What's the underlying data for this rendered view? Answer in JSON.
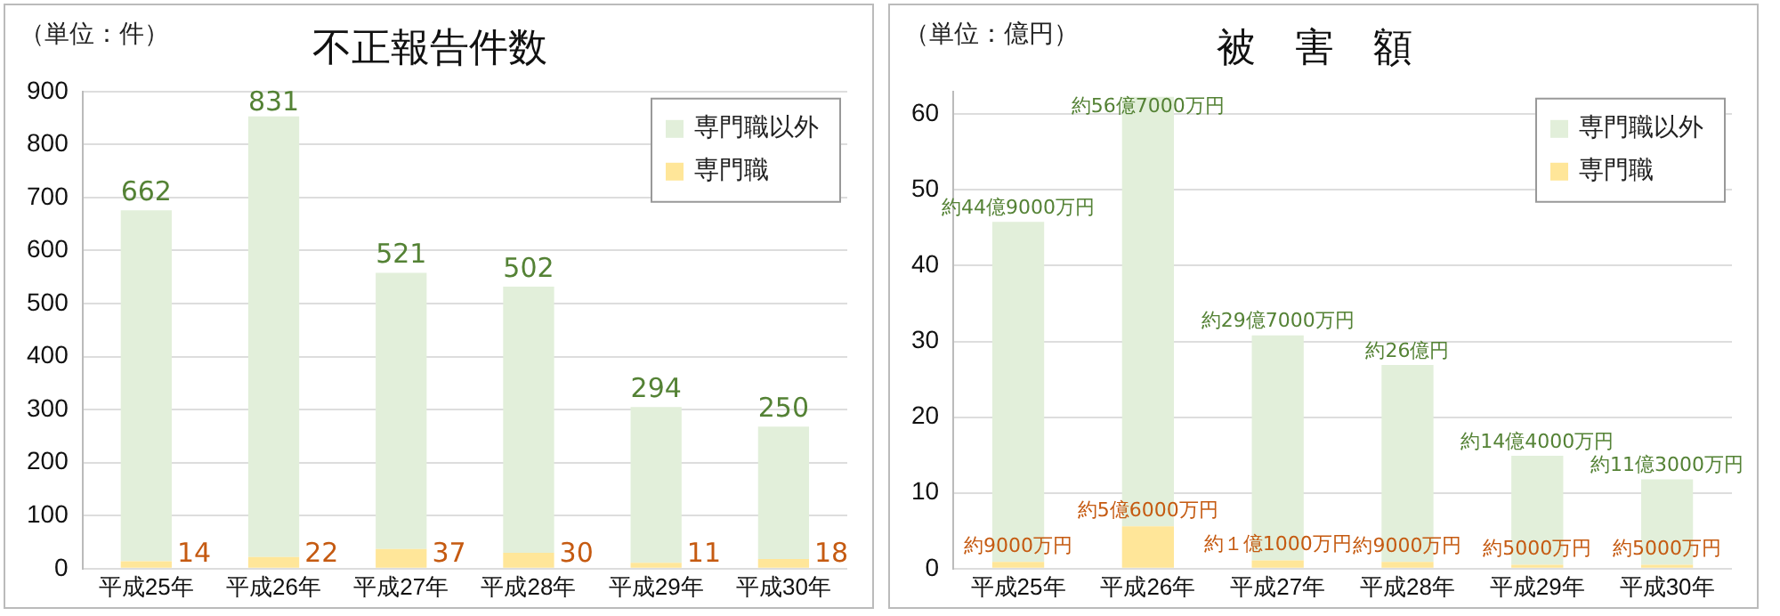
{
  "chart_data": [
    {
      "type": "bar",
      "title": "不正報告件数",
      "annotations": [
        "（単位：件）"
      ],
      "categories": [
        "平成25年",
        "平成26年",
        "平成27年",
        "平成28年",
        "平成29年",
        "平成30年"
      ],
      "stacked": true,
      "legend": "top right",
      "grid": "y",
      "data_labels": true,
      "ylim": [
        0,
        900
      ],
      "yticks": [
        0,
        100,
        200,
        300,
        400,
        500,
        600,
        700,
        800,
        900
      ],
      "series": [
        {
          "name": "専門職",
          "color": "#ffe699",
          "values": [
            14,
            22,
            37,
            30,
            11,
            18
          ]
        },
        {
          "name": "専門職以外",
          "color": "#e2efda",
          "values": [
            662,
            831,
            521,
            502,
            294,
            250
          ]
        }
      ]
    },
    {
      "type": "bar",
      "title": "被　害　額",
      "annotations": [
        "（単位：億円）"
      ],
      "categories": [
        "平成25年",
        "平成26年",
        "平成27年",
        "平成28年",
        "平成29年",
        "平成30年"
      ],
      "stacked": true,
      "legend": "top right",
      "grid": "y",
      "ylim": [
        0,
        63
      ],
      "yticks": [
        0,
        10,
        20,
        30,
        40,
        50,
        60
      ],
      "series": [
        {
          "name": "専門職",
          "color": "#ffe699",
          "values": [
            0.9,
            5.6,
            1.1,
            0.9,
            0.5,
            0.5
          ],
          "value_labels": [
            "約9000万円",
            "約5億6000万円",
            "約１億1000万円",
            "約9000万円",
            "約5000万円",
            "約5000万円"
          ]
        },
        {
          "name": "専門職以外",
          "color": "#e2efda",
          "values": [
            44.9,
            56.7,
            29.7,
            26,
            14.4,
            11.3
          ],
          "value_labels": [
            "約44億9000万円",
            "約56億7000万円",
            "約29億7000万円",
            "約26億円",
            "約14億4000万円",
            "約11億3000万円"
          ]
        }
      ]
    }
  ]
}
